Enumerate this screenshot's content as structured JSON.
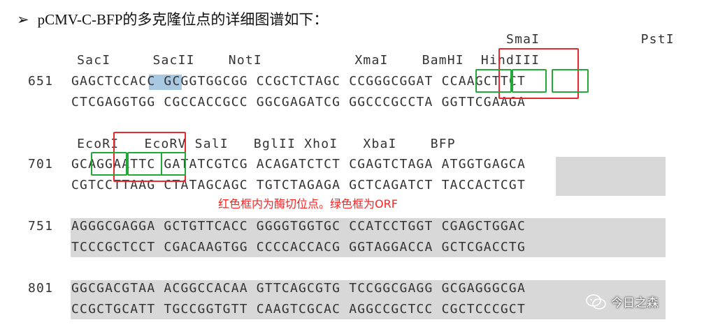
{
  "heading": {
    "bullet": "➢",
    "text": "pCMV-C-BFP的多克隆位点的详细图谱如下："
  },
  "block1": {
    "labels_top": "                                                       SmaI            PstI",
    "labels": "    SacI     SacII    NotI           XmaI    BamHI  HindIII",
    "number": "651",
    "seq1": "GAGCTCCACC GCGGTGGCGG CCGCTCTAGC CCGGGCGGAT CCAAGCTTCT",
    "seq2": "CTCGAGGTGG CGCCACCGCC GGCGAGATCG GGCCCGCCTA GGTTCGAAGA"
  },
  "block2": {
    "labels": "    EcoRI   EcoRV SalI   BglII XhoI   XbaI    BFP",
    "number": "701",
    "seq1": "GCAGGAATTC GATATCGTCG ACAGATCTCT CGAGTCTAGA ATGGTGAGCA",
    "seq2": "CGTCCTTAAG CTATAGCAGC TGTCTAGAGA GCTCAGATCT TACCACTCGT"
  },
  "note": "红色框内为酶切位点。绿色框为ORF",
  "block3": {
    "number": "751",
    "seq1": "AGGGCGAGGA GCTGTTCACC GGGGTGGTGC CCATCCTGGT CGAGCTGGAC",
    "seq2": "TCCCGCTCCT CGACAAGTGG CCCCACCACG GGTAGGACCA GCTCGACCTG"
  },
  "block4": {
    "number": "801",
    "seq1": "GGCGACGTAA ACGGCCACAA GTTCAGCGTG TCCGGCGAGG GCGAGGGCGA",
    "seq2": "CCGCTGCATT TGCCGGTGTT CAAGTCGCAC AGGCCGCTCC CGCTCCCGCT"
  },
  "watermark": "今日之森",
  "colors": {
    "red_box": "#e8272e",
    "green_box": "#22a836",
    "orf_highlight": "#d8d8d8",
    "kozak_highlight": "#a9c8e2",
    "note_text": "#ff2020"
  }
}
